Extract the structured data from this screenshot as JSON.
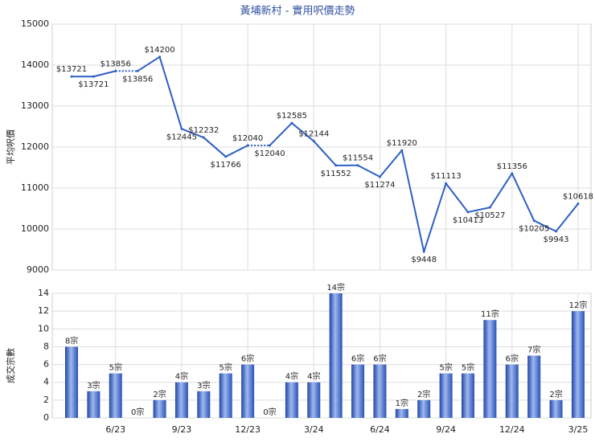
{
  "chart_data": [
    {
      "type": "line",
      "title": "黃埔新村 - 實用呎價走勢",
      "y_label": "平均呎價",
      "categories": [
        null,
        null,
        "6/23",
        null,
        null,
        "9/23",
        null,
        null,
        "12/23",
        null,
        null,
        "3/24",
        null,
        null,
        "6/24",
        null,
        null,
        "9/24",
        null,
        null,
        "12/24",
        null,
        null,
        "3/25"
      ],
      "series": [
        {
          "name": "平均呎價",
          "color": "#2f5fc4",
          "values": [
            13721,
            13721,
            13856,
            13856,
            14200,
            12445,
            12232,
            11766,
            12040,
            12040,
            12585,
            12144,
            11552,
            11554,
            11274,
            11920,
            9448,
            11113,
            10413,
            10527,
            11356,
            10205,
            9943,
            10618
          ],
          "value_labels": [
            "$13721",
            "$13721",
            "$13856",
            "$13856",
            "$14200",
            "$12445",
            "$12232",
            "$11766",
            "$12040",
            "$12040",
            "$12585",
            "$12144",
            "$11552",
            "$11554",
            "$11274",
            "$11920",
            "$9448",
            "$11113",
            "$10413",
            "$10527",
            "$11356",
            "$10205",
            "$9943",
            "$10618"
          ]
        }
      ],
      "ylim": [
        9000,
        15000
      ],
      "yticks": [
        9000,
        10000,
        11000,
        12000,
        13000,
        14000,
        15000
      ],
      "grid": true
    },
    {
      "type": "bar",
      "y_label": "成交宗數",
      "categories": [
        null,
        null,
        "6/23",
        null,
        null,
        "9/23",
        null,
        null,
        "12/23",
        null,
        null,
        "3/24",
        null,
        null,
        "6/24",
        null,
        null,
        "9/24",
        null,
        null,
        "12/24",
        null,
        null,
        "3/25"
      ],
      "series": [
        {
          "name": "成交宗數",
          "color": "#3b66c8",
          "values": [
            8,
            3,
            5,
            0,
            2,
            4,
            3,
            5,
            6,
            0,
            4,
            4,
            14,
            6,
            6,
            1,
            2,
            5,
            5,
            11,
            6,
            7,
            2,
            12
          ],
          "value_labels": [
            "8宗",
            "3宗",
            "5宗",
            "0宗",
            "2宗",
            "4宗",
            "3宗",
            "5宗",
            "6宗",
            "0宗",
            "4宗",
            "4宗",
            "14宗",
            "6宗",
            "6宗",
            "1宗",
            "2宗",
            "5宗",
            "5宗",
            "11宗",
            "6宗",
            "7宗",
            "2宗",
            "12宗"
          ]
        }
      ],
      "ylim": [
        0,
        14
      ],
      "yticks": [
        0,
        2,
        4,
        6,
        8,
        10,
        12,
        14
      ],
      "grid": true
    }
  ]
}
